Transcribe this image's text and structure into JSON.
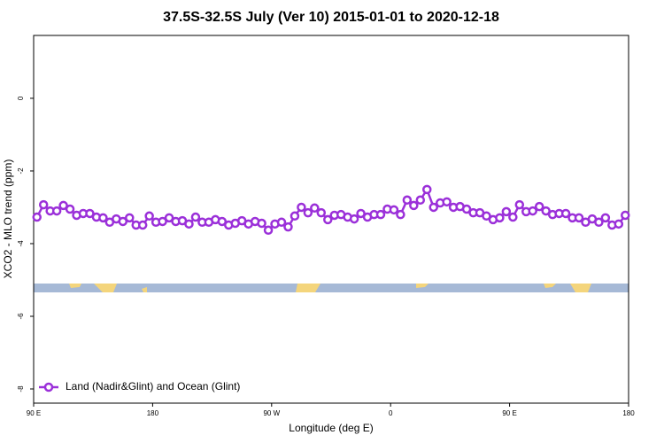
{
  "chart_data": {
    "type": "line",
    "title": "37.5S-32.5S July (Ver 10)   2015-01-01 to 2020-12-18",
    "x_label": "Longitude (deg E)",
    "y_label": "XCO2 - MLO trend (ppm)",
    "xlim": [
      90,
      540
    ],
    "ylim": [
      -8.39,
      1.73
    ],
    "xticks": [
      {
        "value": 90,
        "label": "90 E"
      },
      180,
      {
        "value": 270,
        "label": "90 W"
      },
      {
        "value": 360,
        "label": "0"
      },
      {
        "value": 450,
        "label": "90 E"
      },
      {
        "value": 540,
        "label": "180"
      }
    ],
    "yticks": [
      0,
      -2,
      -4,
      -6,
      -8
    ],
    "legend": "bottomleft",
    "x": [
      92.5,
      97.5,
      102.5,
      107.5,
      112.5,
      117.5,
      122.5,
      127.5,
      132.5,
      137.5,
      142.5,
      147.5,
      152.5,
      157.5,
      162.5,
      167.5,
      172.5,
      177.5,
      182.5,
      187.5,
      192.5,
      197.5,
      202.5,
      207.5,
      212.5,
      217.5,
      222.5,
      227.5,
      232.5,
      237.5,
      242.5,
      247.5,
      252.5,
      257.5,
      262.5,
      267.5,
      272.5,
      277.5,
      282.5,
      287.5,
      292.5,
      297.5,
      302.5,
      307.5,
      312.5,
      317.5,
      322.5,
      327.5,
      332.5,
      337.5,
      342.5,
      347.5,
      352.5,
      357.5,
      362.5,
      367.5,
      372.5,
      377.5,
      382.5,
      387.5,
      392.5,
      397.5,
      402.5,
      407.5,
      412.5,
      417.5,
      422.5,
      427.5,
      432.5,
      437.5,
      442.5,
      447.5,
      452.5,
      457.5,
      462.5,
      467.5,
      472.5,
      477.5,
      482.5,
      487.5,
      492.5,
      497.5,
      502.5,
      507.5,
      512.5,
      517.5,
      522.5,
      527.5,
      532.5,
      537.5
    ],
    "series": [
      {
        "name": "Land (Nadir&Glint) and Ocean (Glint)",
        "color": "#9b30d9",
        "values": [
          -3.27,
          -2.93,
          -3.1,
          -3.1,
          -2.95,
          -3.05,
          -3.22,
          -3.17,
          -3.17,
          -3.27,
          -3.29,
          -3.41,
          -3.32,
          -3.39,
          -3.29,
          -3.49,
          -3.49,
          -3.24,
          -3.41,
          -3.39,
          -3.29,
          -3.39,
          -3.37,
          -3.46,
          -3.27,
          -3.41,
          -3.41,
          -3.34,
          -3.39,
          -3.49,
          -3.44,
          -3.37,
          -3.46,
          -3.39,
          -3.44,
          -3.63,
          -3.46,
          -3.41,
          -3.54,
          -3.24,
          -3.0,
          -3.15,
          -3.02,
          -3.15,
          -3.34,
          -3.22,
          -3.2,
          -3.27,
          -3.32,
          -3.17,
          -3.27,
          -3.2,
          -3.2,
          -3.05,
          -3.07,
          -3.2,
          -2.8,
          -2.95,
          -2.8,
          -2.51,
          -3.0,
          -2.88,
          -2.85,
          -3.0,
          -2.98,
          -3.05,
          -3.15,
          -3.15,
          -3.24,
          -3.34,
          -3.29,
          -3.12,
          -3.27,
          -2.93,
          -3.12,
          -3.1,
          -2.98,
          -3.1,
          -3.2,
          -3.17,
          -3.17,
          -3.29,
          -3.29,
          -3.41,
          -3.32,
          -3.41,
          -3.29,
          -3.49,
          -3.46,
          -3.22
        ]
      }
    ]
  }
}
